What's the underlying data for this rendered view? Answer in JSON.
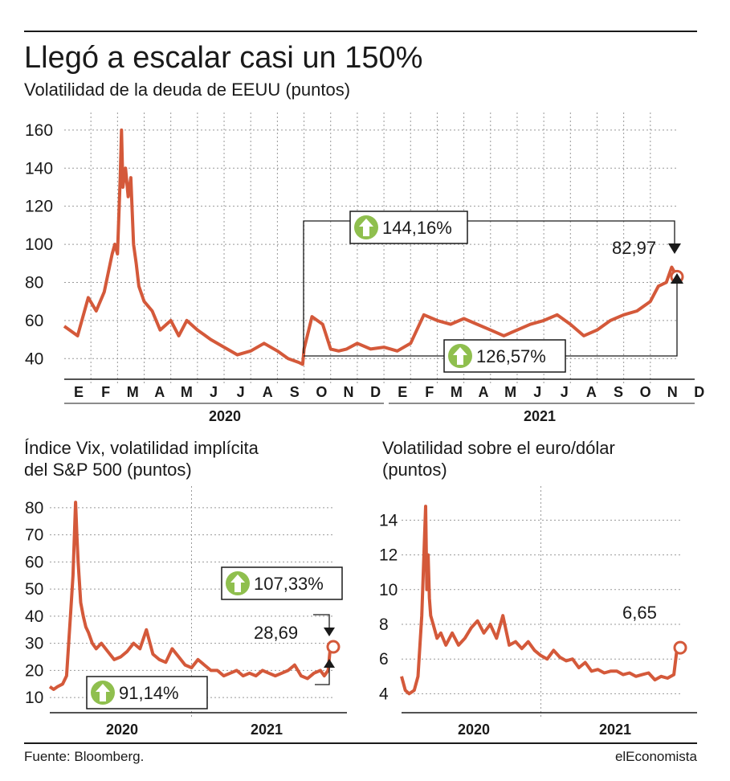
{
  "header": {
    "title": "Llegó a escalar casi un 150%",
    "subtitle": "Volatilidad de la deuda de EEUU (puntos)"
  },
  "footer": {
    "source": "Fuente: Bloomberg.",
    "brand": "elEconomista"
  },
  "colors": {
    "line": "#d4593a",
    "arrow_badge": "#8fbf4e",
    "axis": "#1a1a1a",
    "grid": "#999999"
  },
  "chart_data": [
    {
      "id": "deuda",
      "type": "line",
      "title": "Volatilidad de la deuda de EEUU (puntos)",
      "ylim": [
        30,
        165
      ],
      "yticks": [
        40,
        60,
        80,
        100,
        120,
        140,
        160
      ],
      "x_months": [
        "E",
        "F",
        "M",
        "A",
        "M",
        "J",
        "J",
        "A",
        "S",
        "O",
        "N",
        "D",
        "E",
        "F",
        "M",
        "A",
        "M",
        "J",
        "J",
        "A",
        "S",
        "O",
        "N",
        "D"
      ],
      "x_years": [
        "2020",
        "2021"
      ],
      "series": [
        {
          "x": [
            0,
            0.5,
            0.9,
            1.2,
            1.5,
            1.8,
            1.9,
            2.0,
            2.1,
            2.15,
            2.2,
            2.3,
            2.4,
            2.5,
            2.6,
            2.7,
            2.8,
            3.0,
            3.3,
            3.6,
            4.0,
            4.3,
            4.6,
            5.0,
            5.5,
            6.0,
            6.5,
            7.0,
            7.5,
            8.0,
            8.4,
            8.8,
            8.95,
            9.0,
            9.3,
            9.7,
            10.0,
            10.3,
            10.6,
            11.0,
            11.5,
            12.0,
            12.5,
            13.0,
            13.5,
            14.0,
            14.5,
            15.0,
            15.5,
            16.0,
            16.5,
            17.0,
            17.5,
            18.0,
            18.5,
            19.0,
            19.5,
            20.0,
            20.5,
            21.0,
            21.5,
            22.0,
            22.3,
            22.6,
            22.8,
            23.0
          ],
          "values": [
            57,
            52,
            72,
            65,
            75,
            95,
            100,
            95,
            135,
            160,
            130,
            140,
            125,
            135,
            100,
            90,
            78,
            70,
            65,
            55,
            60,
            52,
            60,
            55,
            50,
            46,
            42,
            44,
            48,
            44,
            40,
            38,
            37,
            45,
            62,
            58,
            45,
            44,
            45,
            48,
            45,
            46,
            44,
            48,
            63,
            60,
            58,
            61,
            58,
            55,
            52,
            55,
            58,
            60,
            63,
            58,
            52,
            55,
            60,
            63,
            65,
            70,
            78,
            80,
            88,
            83
          ]
        }
      ],
      "callouts": [
        {
          "label": "144,16%"
        },
        {
          "label": "126,57%"
        },
        {
          "label": "82,97",
          "value": 82.97
        }
      ]
    },
    {
      "id": "vix",
      "type": "line",
      "title": "Índice Vix, volatilidad implícita del S&P 500 (puntos)",
      "ylim": [
        5,
        85
      ],
      "yticks": [
        10,
        20,
        30,
        40,
        50,
        60,
        70,
        80
      ],
      "x_years": [
        "2020",
        "2021"
      ],
      "series": [
        {
          "x": [
            0,
            0.3,
            0.6,
            1.0,
            1.3,
            1.6,
            1.8,
            2.0,
            2.1,
            2.2,
            2.4,
            2.6,
            2.8,
            3.0,
            3.3,
            3.6,
            4.0,
            4.5,
            5.0,
            5.5,
            6.0,
            6.5,
            7.0,
            7.5,
            8.0,
            8.5,
            9.0,
            9.5,
            10.0,
            10.5,
            11.0,
            11.5,
            12.0,
            12.5,
            13.0,
            13.5,
            14.0,
            14.5,
            15.0,
            15.5,
            16.0,
            16.5,
            17.0,
            17.5,
            18.0,
            18.5,
            19.0,
            19.5,
            20.0,
            20.5,
            21.0,
            21.3,
            21.6,
            21.8,
            22.0
          ],
          "values": [
            14,
            13,
            14,
            15,
            18,
            40,
            55,
            82,
            70,
            60,
            45,
            40,
            36,
            34,
            30,
            28,
            30,
            27,
            24,
            25,
            27,
            30,
            28,
            35,
            26,
            24,
            23,
            28,
            25,
            22,
            21,
            24,
            22,
            20,
            20,
            18,
            19,
            20,
            18,
            19,
            18,
            20,
            19,
            18,
            19,
            20,
            22,
            18,
            17,
            19,
            20,
            18,
            20,
            30,
            28.69
          ]
        }
      ],
      "callouts": [
        {
          "label": "107,33%"
        },
        {
          "label": "91,14%"
        },
        {
          "label": "28,69",
          "value": 28.69
        }
      ]
    },
    {
      "id": "eurodolar",
      "type": "line",
      "title": "Volatilidad sobre el euro/dólar (puntos)",
      "ylim": [
        3,
        15.5
      ],
      "yticks": [
        4,
        6,
        8,
        10,
        12,
        14
      ],
      "x_years": [
        "2020",
        "2021"
      ],
      "series": [
        {
          "x": [
            0,
            0.3,
            0.6,
            1.0,
            1.3,
            1.6,
            1.9,
            2.0,
            2.1,
            2.2,
            2.3,
            2.5,
            2.8,
            3.1,
            3.5,
            4.0,
            4.5,
            5.0,
            5.5,
            6.0,
            6.5,
            7.0,
            7.5,
            8.0,
            8.5,
            9.0,
            9.5,
            10.0,
            10.5,
            11.0,
            11.5,
            12.0,
            12.5,
            13.0,
            13.5,
            14.0,
            14.5,
            15.0,
            15.5,
            16.0,
            16.5,
            17.0,
            17.5,
            18.0,
            18.5,
            19.0,
            19.5,
            20.0,
            20.5,
            21.0,
            21.5,
            21.8,
            22.0
          ],
          "values": [
            5,
            4.2,
            4,
            4.2,
            5,
            8.5,
            14.8,
            10,
            12,
            9.5,
            8.5,
            8,
            7.2,
            7.5,
            6.8,
            7.5,
            6.8,
            7.2,
            7.8,
            8.2,
            7.5,
            8,
            7.2,
            8.5,
            6.8,
            7,
            6.6,
            7,
            6.5,
            6.2,
            6,
            6.5,
            6.1,
            5.9,
            6,
            5.5,
            5.8,
            5.3,
            5.4,
            5.2,
            5.3,
            5.3,
            5.1,
            5.2,
            5,
            5.1,
            5.2,
            4.8,
            5,
            4.9,
            5.1,
            6.9,
            6.65
          ]
        }
      ],
      "callouts": [
        {
          "label": "6,65",
          "value": 6.65
        }
      ]
    }
  ],
  "panel_titles": {
    "vix_line1": "Índice Vix, volatilidad implícita",
    "vix_line2": "del S&P 500 (puntos)",
    "euro_line1": "Volatilidad sobre el euro/dólar",
    "euro_line2": "(puntos)"
  }
}
